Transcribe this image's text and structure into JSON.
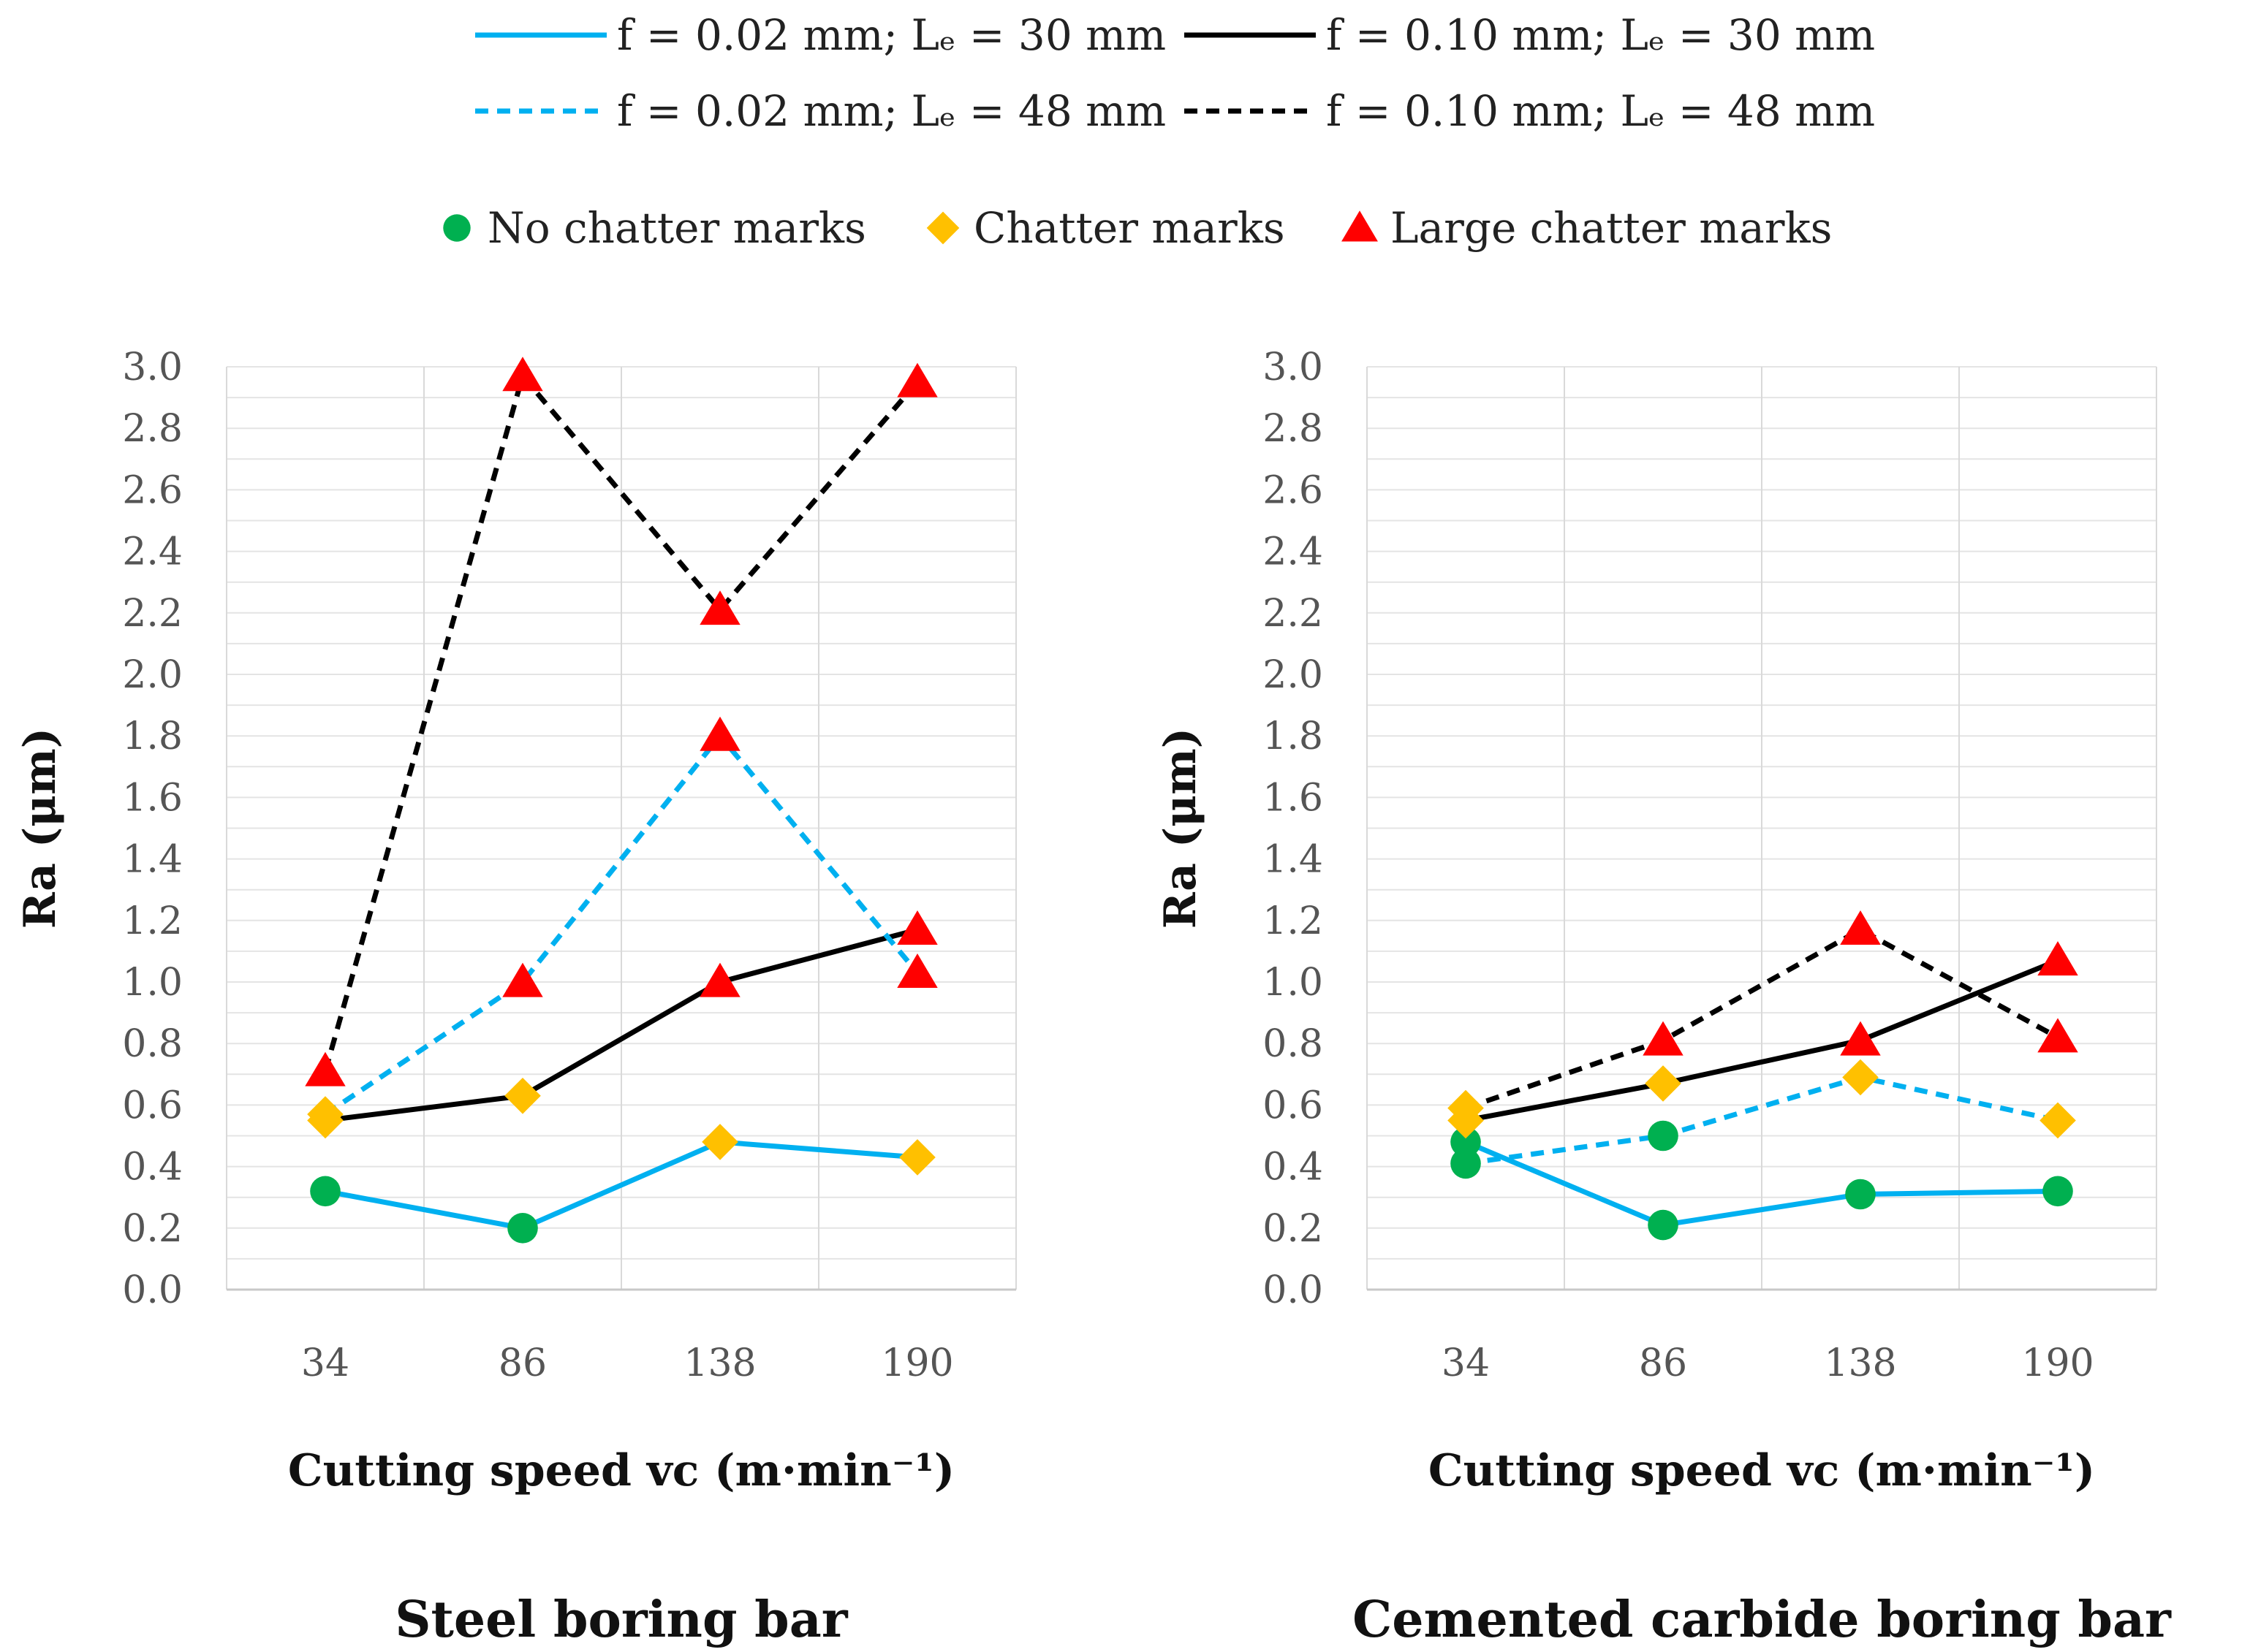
{
  "legend": {
    "series": [
      {
        "label": "f = 0.02 mm; Lₑ = 30 mm",
        "color": "#00B0F0",
        "dash": "solid"
      },
      {
        "label": "f = 0.10 mm; Lₑ = 30 mm",
        "color": "#000000",
        "dash": "solid"
      },
      {
        "label": "f = 0.02 mm; Lₑ = 48 mm",
        "color": "#00B0F0",
        "dash": "dashed"
      },
      {
        "label": "f = 0.10 mm; Lₑ = 48 mm",
        "color": "#000000",
        "dash": "dashed"
      }
    ],
    "markers": [
      {
        "label": "No chatter marks",
        "shape": "circle",
        "color": "#00B050"
      },
      {
        "label": "Chatter marks",
        "shape": "diamond",
        "color": "#FFC000"
      },
      {
        "label": "Large chatter marks",
        "shape": "triangle",
        "color": "#FF0000"
      }
    ]
  },
  "chart_data": [
    {
      "type": "line",
      "title": "Steel boring bar",
      "xlabel": "Cutting speed vc (m·min⁻¹)",
      "ylabel": "Ra (μm)",
      "categories": [
        "34",
        "86",
        "138",
        "190"
      ],
      "ylim": [
        0,
        3.0
      ],
      "yticks": [
        "0.0",
        "0.2",
        "0.4",
        "0.6",
        "0.8",
        "1.0",
        "1.2",
        "1.4",
        "1.6",
        "1.8",
        "2.0",
        "2.2",
        "2.4",
        "2.6",
        "2.8",
        "3.0"
      ],
      "grid": true,
      "series": [
        {
          "name": "f = 0.02 mm; Lₑ = 30 mm",
          "values": [
            0.32,
            0.2,
            0.48,
            0.43
          ],
          "markers": [
            "circle",
            "circle",
            "diamond",
            "diamond"
          ]
        },
        {
          "name": "f = 0.10 mm; Lₑ = 30 mm",
          "values": [
            0.55,
            0.63,
            1.0,
            1.17
          ],
          "markers": [
            "diamond",
            "diamond",
            "triangle",
            "triangle"
          ]
        },
        {
          "name": "f = 0.02 mm; Lₑ = 48 mm",
          "values": [
            0.57,
            1.0,
            1.8,
            1.03
          ],
          "markers": [
            "diamond",
            "triangle",
            "triangle",
            "triangle"
          ]
        },
        {
          "name": "f = 0.10 mm; Lₑ = 48 mm",
          "values": [
            0.71,
            2.97,
            2.21,
            2.95
          ],
          "markers": [
            "triangle",
            "triangle",
            "triangle",
            "triangle"
          ]
        }
      ]
    },
    {
      "type": "line",
      "title": "Cemented carbide boring bar",
      "xlabel": "Cutting speed vc (m·min⁻¹)",
      "ylabel": "Ra (μm)",
      "categories": [
        "34",
        "86",
        "138",
        "190"
      ],
      "ylim": [
        0,
        3.0
      ],
      "yticks": [
        "0.0",
        "0.2",
        "0.4",
        "0.6",
        "0.8",
        "1.0",
        "1.2",
        "1.4",
        "1.6",
        "1.8",
        "2.0",
        "2.2",
        "2.4",
        "2.6",
        "2.8",
        "3.0"
      ],
      "grid": true,
      "series": [
        {
          "name": "f = 0.02 mm; Lₑ = 30 mm",
          "values": [
            0.48,
            0.21,
            0.31,
            0.32
          ],
          "markers": [
            "circle",
            "circle",
            "circle",
            "circle"
          ]
        },
        {
          "name": "f = 0.10 mm; Lₑ = 30 mm",
          "values": [
            0.55,
            0.67,
            0.81,
            1.07
          ],
          "markers": [
            "diamond",
            "diamond",
            "triangle",
            "triangle"
          ]
        },
        {
          "name": "f = 0.02 mm; Lₑ = 48 mm",
          "values": [
            0.41,
            0.5,
            0.69,
            0.55
          ],
          "markers": [
            "circle",
            "circle",
            "diamond",
            "diamond"
          ]
        },
        {
          "name": "f = 0.10 mm; Lₑ = 48 mm",
          "values": [
            0.59,
            0.81,
            1.17,
            0.82
          ],
          "markers": [
            "diamond",
            "triangle",
            "triangle",
            "triangle"
          ]
        }
      ]
    }
  ]
}
